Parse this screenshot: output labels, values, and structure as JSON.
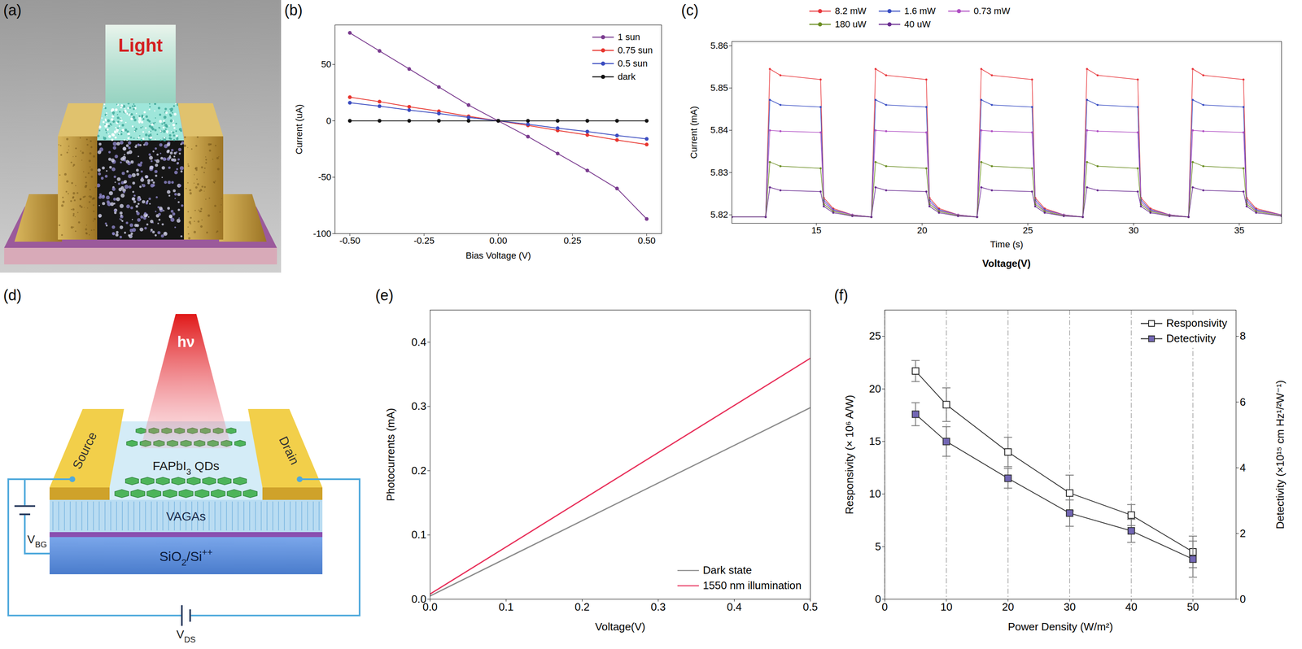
{
  "diagrams": [
    {
      "panel": "(a)",
      "labels": {
        "light": [
          {
            "text": "Light"
          }
        ]
      }
    },
    {
      "panel": "(d)",
      "labels": {
        "light": [
          {
            "text": "hν"
          }
        ],
        "gate_voltage": [
          {
            "text": "V"
          },
          {
            "text": "BG",
            "sub": true
          }
        ],
        "source": [
          {
            "text": "Source"
          }
        ],
        "drain": [
          {
            "text": "Drain"
          }
        ],
        "quantum_dots": [
          {
            "text": "FAPbI"
          },
          {
            "text": "3",
            "sub": true
          },
          {
            "text": " QDs"
          }
        ],
        "graphene": [
          {
            "text": "VAGAs"
          }
        ],
        "substrate": [
          {
            "text": "SiO"
          },
          {
            "text": "2",
            "sub": true
          },
          {
            "text": "/Si"
          },
          {
            "text": "++",
            "sup": true
          }
        ],
        "drain_voltage": [
          {
            "text": "V"
          },
          {
            "text": "DS",
            "sub": true
          }
        ]
      }
    }
  ],
  "chart_data": [
    {
      "panel": "(b)",
      "type": "line",
      "xlabel": "Bias Voltage (V)",
      "ylabel": "Current (uA)",
      "x": [
        -0.5,
        -0.4,
        -0.3,
        -0.2,
        -0.1,
        0,
        0.1,
        0.2,
        0.3,
        0.4,
        0.5
      ],
      "series": [
        {
          "name": "1 sun",
          "color": "#7a3b8f",
          "values": [
            78,
            62,
            46,
            30,
            14,
            0,
            -14,
            -29,
            -44,
            -60,
            -87
          ]
        },
        {
          "name": "0.75 sun",
          "color": "#e8352e",
          "values": [
            21,
            17,
            12.5,
            8.5,
            4,
            0,
            -4,
            -8.5,
            -12.5,
            -17,
            -21
          ]
        },
        {
          "name": "0.5 sun",
          "color": "#3b4cc0",
          "values": [
            16,
            13,
            9.5,
            6.5,
            3,
            0,
            -3,
            -6.5,
            -9.5,
            -13,
            -16
          ]
        },
        {
          "name": "dark",
          "color": "#111111",
          "values": [
            0,
            0,
            0,
            0,
            0,
            0,
            0,
            0,
            0,
            0,
            0
          ]
        }
      ],
      "xlim": [
        -0.55,
        0.55
      ],
      "ylim": [
        -100,
        85
      ],
      "xticks": [
        {
          "value": -0.5,
          "label": "-0.50"
        },
        -0.25,
        {
          "value": 0,
          "label": "0.00"
        },
        0.25,
        {
          "value": 0.5,
          "label": "0.50"
        }
      ],
      "yticks": [
        -100,
        -50,
        0,
        50
      ],
      "legend": "top-right",
      "marker": "circle"
    },
    {
      "panel": "(c)",
      "type": "line",
      "xlabel": "Time (s)",
      "ylabel": "Current (mA)",
      "annotations": [
        "Voltage(V)"
      ],
      "x": [
        11,
        12.6,
        12.8,
        13.3,
        15.2,
        15.35,
        15.8,
        16.7,
        17.6,
        17.8,
        18.3,
        20.2,
        20.35,
        20.8,
        21.7,
        22.6,
        22.8,
        23.3,
        25.2,
        25.35,
        25.8,
        26.7,
        27.6,
        27.8,
        28.3,
        30.2,
        30.35,
        30.8,
        31.7,
        32.6,
        32.8,
        33.3,
        35.2,
        35.35,
        35.8,
        37
      ],
      "series": [
        {
          "name": "8.2 mW",
          "color": "#e8383d",
          "values": [
            5.8195,
            5.8195,
            5.8545,
            5.853,
            5.852,
            5.824,
            5.8215,
            5.82,
            5.8195,
            5.8545,
            5.853,
            5.852,
            5.824,
            5.8215,
            5.82,
            5.8195,
            5.8545,
            5.853,
            5.852,
            5.824,
            5.8215,
            5.82,
            5.8195,
            5.8545,
            5.853,
            5.852,
            5.824,
            5.8215,
            5.82,
            5.8195,
            5.8545,
            5.853,
            5.852,
            5.824,
            5.8215,
            5.82
          ]
        },
        {
          "name": "1.6 mW",
          "color": "#3a4fc4",
          "values": [
            5.8195,
            5.8195,
            5.8472,
            5.846,
            5.8455,
            5.8235,
            5.8212,
            5.82,
            5.8195,
            5.8472,
            5.846,
            5.8455,
            5.8235,
            5.8212,
            5.82,
            5.8195,
            5.8472,
            5.846,
            5.8455,
            5.8235,
            5.8212,
            5.82,
            5.8195,
            5.8472,
            5.846,
            5.8455,
            5.8235,
            5.8212,
            5.82,
            5.8195,
            5.8472,
            5.846,
            5.8455,
            5.8235,
            5.8212,
            5.82
          ]
        },
        {
          "name": "0.73 mW",
          "color": "#b04fc4",
          "values": [
            5.8195,
            5.8195,
            5.84,
            5.8398,
            5.8395,
            5.823,
            5.821,
            5.82,
            5.8195,
            5.84,
            5.8398,
            5.8395,
            5.823,
            5.821,
            5.82,
            5.8195,
            5.84,
            5.8398,
            5.8395,
            5.823,
            5.821,
            5.82,
            5.8195,
            5.84,
            5.8398,
            5.8395,
            5.823,
            5.821,
            5.82,
            5.8195,
            5.84,
            5.8398,
            5.8395,
            5.823,
            5.821,
            5.82
          ]
        },
        {
          "name": "180 uW",
          "color": "#6b8e23",
          "values": [
            5.8195,
            5.8195,
            5.8325,
            5.8315,
            5.831,
            5.8225,
            5.8208,
            5.8198,
            5.8195,
            5.8325,
            5.8315,
            5.831,
            5.8225,
            5.8208,
            5.8198,
            5.8195,
            5.8325,
            5.8315,
            5.831,
            5.8225,
            5.8208,
            5.8198,
            5.8195,
            5.8325,
            5.8315,
            5.831,
            5.8225,
            5.8208,
            5.8198,
            5.8195,
            5.8325,
            5.8315,
            5.831,
            5.8225,
            5.8208,
            5.8198
          ]
        },
        {
          "name": "40 uW",
          "color": "#6a2c91",
          "values": [
            5.8195,
            5.8195,
            5.8265,
            5.8258,
            5.8255,
            5.822,
            5.8205,
            5.8197,
            5.8195,
            5.8265,
            5.8258,
            5.8255,
            5.822,
            5.8205,
            5.8197,
            5.8195,
            5.8265,
            5.8258,
            5.8255,
            5.822,
            5.8205,
            5.8197,
            5.8195,
            5.8265,
            5.8258,
            5.8255,
            5.822,
            5.8205,
            5.8197,
            5.8195,
            5.8265,
            5.8258,
            5.8255,
            5.822,
            5.8205,
            5.8197
          ]
        }
      ],
      "xlim": [
        11,
        37
      ],
      "ylim": [
        5.818,
        5.861
      ],
      "xticks": [
        15,
        20,
        25,
        30,
        35
      ],
      "yticks": [
        5.82,
        5.83,
        5.84,
        5.85,
        5.86
      ],
      "legend": "top",
      "marker": "circle"
    },
    {
      "panel": "(e)",
      "type": "line",
      "xlabel": "Voltage(V)",
      "ylabel": "Photocurrents (mA)",
      "x": [
        0,
        0.5
      ],
      "series": [
        {
          "name": "Dark state",
          "color": "#8c8c8c",
          "values": [
            0.005,
            0.298
          ]
        },
        {
          "name": "1550 nm illumination",
          "color": "#e8315b",
          "values": [
            0.008,
            0.375
          ]
        }
      ],
      "xlim": [
        0,
        0.5
      ],
      "ylim": [
        0,
        0.45
      ],
      "xticks": [
        {
          "value": 0,
          "label": "0.0"
        },
        0.1,
        0.2,
        0.3,
        0.4,
        0.5
      ],
      "yticks": [
        {
          "value": 0,
          "label": "0.0"
        },
        0.1,
        0.2,
        0.3,
        0.4
      ],
      "legend": "bottom-right"
    },
    {
      "panel": "(f)",
      "type": "line",
      "xlabel": "Power Density (W/m²)",
      "ylabel": "Responsivity (× 10⁶ A/W)",
      "y2label": "Detectivity (×10¹⁵ cm Hz¹/²W⁻¹)",
      "x": [
        5,
        10,
        20,
        30,
        40,
        50
      ],
      "series": [
        {
          "name": "Responsivity",
          "color": "#222222",
          "marker": "square_open",
          "values": [
            21.7,
            18.5,
            14,
            10.1,
            8,
            4.5
          ],
          "errors": [
            1,
            1.6,
            1.4,
            1.7,
            1,
            1.5
          ]
        },
        {
          "name": "Detectivity",
          "color": "#7266b4",
          "marker": "square",
          "axis": "y2",
          "values": [
            5.63,
            4.8,
            3.68,
            2.62,
            2.08,
            1.22
          ],
          "errors": [
            0.35,
            0.45,
            0.3,
            0.4,
            0.35,
            0.55
          ]
        }
      ],
      "xlim": [
        0,
        57
      ],
      "ylim": [
        0,
        27.5
      ],
      "y2lim": [
        0,
        8.8
      ],
      "xticks": [
        0,
        10,
        20,
        30,
        40,
        50
      ],
      "yticks": [
        0,
        5,
        10,
        15,
        20,
        25
      ],
      "y2ticks": [
        0,
        2,
        4,
        6,
        8
      ],
      "grid": "x",
      "legend": "top-right"
    }
  ]
}
